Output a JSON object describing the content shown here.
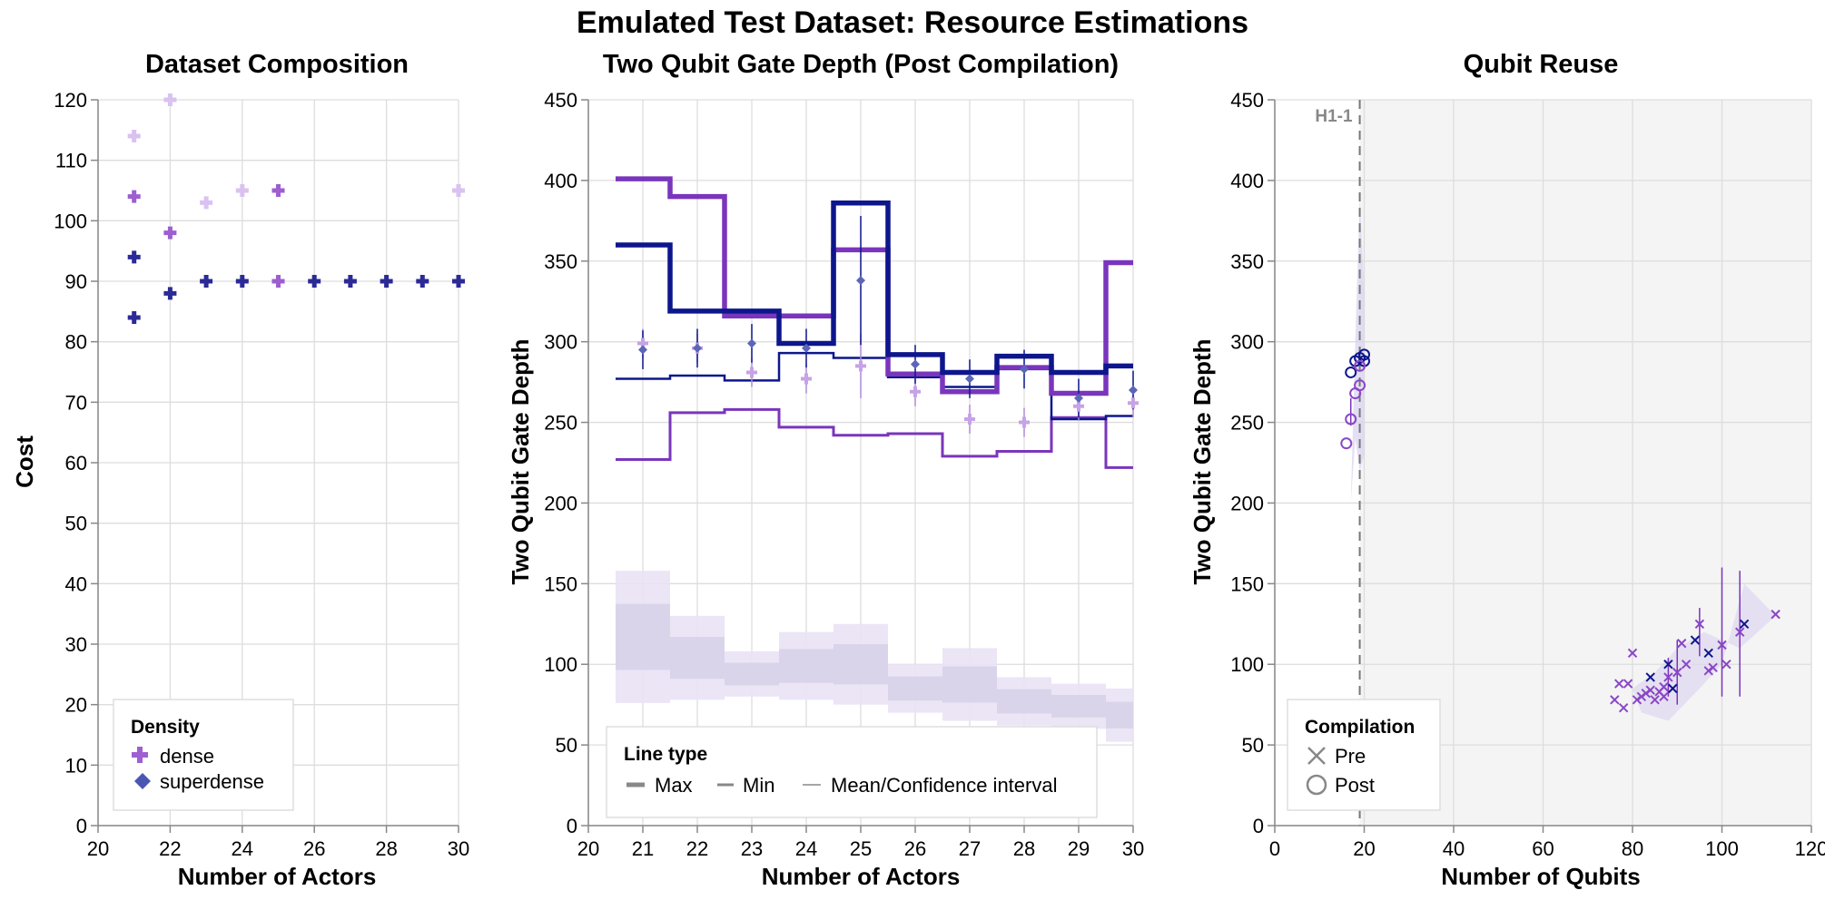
{
  "figure_title": "Emulated Test Dataset: Resource Estimations",
  "colors": {
    "dense": "#9f5fd2",
    "dense_light": "#d7bdf0",
    "superdense": "#4a57b2",
    "navy": "#0d168c",
    "purple": "#7a35bd",
    "light_band": "#e9e2f5",
    "light_band2": "#e4e3f1",
    "grid": "#dddddd",
    "axis": "#888888",
    "shade": "#f4f4f4"
  },
  "chart_data": [
    {
      "type": "scatter",
      "title": "Dataset Composition",
      "xlabel": "Number of Actors",
      "ylabel": "Cost",
      "xlim": [
        20,
        30
      ],
      "ylim": [
        0,
        120
      ],
      "x_ticks": [
        20,
        22,
        24,
        26,
        28,
        30
      ],
      "y_ticks": [
        0,
        10,
        20,
        30,
        40,
        50,
        60,
        70,
        80,
        90,
        100,
        110,
        120
      ],
      "grid": true,
      "legend": {
        "title": "Density",
        "position": "bottom-left",
        "entries": [
          "dense",
          "superdense"
        ]
      },
      "points": [
        {
          "x": 21,
          "y": 114,
          "shade": "light"
        },
        {
          "x": 22,
          "y": 120,
          "shade": "light"
        },
        {
          "x": 23,
          "y": 103,
          "shade": "light"
        },
        {
          "x": 24,
          "y": 105,
          "shade": "light"
        },
        {
          "x": 30,
          "y": 105,
          "shade": "light"
        },
        {
          "x": 21,
          "y": 104,
          "shade": "mid"
        },
        {
          "x": 22,
          "y": 98,
          "shade": "mid"
        },
        {
          "x": 25,
          "y": 105,
          "shade": "mid"
        },
        {
          "x": 25,
          "y": 90,
          "shade": "mid"
        },
        {
          "x": 21,
          "y": 94,
          "shade": "dark"
        },
        {
          "x": 21,
          "y": 84,
          "shade": "dark"
        },
        {
          "x": 22,
          "y": 88,
          "shade": "dark"
        },
        {
          "x": 23,
          "y": 90,
          "shade": "dark"
        },
        {
          "x": 24,
          "y": 90,
          "shade": "dark"
        },
        {
          "x": 26,
          "y": 90,
          "shade": "dark"
        },
        {
          "x": 27,
          "y": 90,
          "shade": "dark"
        },
        {
          "x": 28,
          "y": 90,
          "shade": "dark"
        },
        {
          "x": 29,
          "y": 90,
          "shade": "dark"
        },
        {
          "x": 30,
          "y": 90,
          "shade": "dark"
        }
      ]
    },
    {
      "type": "line",
      "title": "Two Qubit Gate Depth (Post Compilation)",
      "xlabel": "Number of Actors",
      "ylabel": "Two Qubit Gate Depth",
      "xlim": [
        20,
        30
      ],
      "ylim": [
        0,
        450
      ],
      "x_ticks": [
        20,
        21,
        22,
        23,
        24,
        25,
        26,
        27,
        28,
        29,
        30
      ],
      "y_ticks": [
        0,
        50,
        100,
        150,
        200,
        250,
        300,
        350,
        400,
        450
      ],
      "grid": true,
      "legend": {
        "title": "Line type",
        "position": "bottom",
        "entries": [
          "Max",
          "Min",
          "Mean/Confidence interval"
        ]
      },
      "x": [
        21,
        22,
        23,
        24,
        25,
        26,
        27,
        28,
        29,
        30
      ],
      "series": [
        {
          "name": "dense Max",
          "values": [
            401,
            390,
            316,
            316,
            357,
            280,
            269,
            284,
            268,
            349
          ]
        },
        {
          "name": "superdense Max",
          "values": [
            360,
            319,
            319,
            299,
            386,
            292,
            281,
            291,
            281,
            285
          ]
        },
        {
          "name": "dense Min",
          "values": [
            227,
            256,
            258,
            247,
            242,
            243,
            229,
            232,
            253,
            222
          ]
        },
        {
          "name": "superdense Min",
          "values": [
            277,
            279,
            276,
            293,
            290,
            278,
            272,
            283,
            252,
            254
          ]
        },
        {
          "name": "dense Mean",
          "values": [
            299,
            296,
            281,
            277,
            285,
            269,
            252,
            250,
            260,
            262
          ]
        },
        {
          "name": "superdense Mean",
          "values": [
            295,
            296,
            299,
            296,
            338,
            286,
            277,
            283,
            265,
            270
          ]
        },
        {
          "name": "band low",
          "values": [
            76,
            78,
            80,
            78,
            75,
            70,
            65,
            62,
            60,
            52
          ]
        },
        {
          "name": "band high",
          "values": [
            158,
            130,
            108,
            120,
            125,
            100,
            110,
            92,
            88,
            85
          ]
        }
      ]
    },
    {
      "type": "scatter",
      "title": "Qubit Reuse",
      "xlabel": "Number of Qubits",
      "ylabel": "Two Qubit Gate Depth",
      "xlim": [
        0,
        120
      ],
      "ylim": [
        0,
        450
      ],
      "x_ticks": [
        0,
        20,
        40,
        60,
        80,
        100,
        120
      ],
      "y_ticks": [
        0,
        50,
        100,
        150,
        200,
        250,
        300,
        350,
        400,
        450
      ],
      "grid": true,
      "annotation": "H1-1",
      "h1_x": 19,
      "legend": {
        "title": "Compilation",
        "position": "bottom-left",
        "entries": [
          "Pre",
          "Post"
        ]
      },
      "post_points": [
        [
          16,
          237,
          "p"
        ],
        [
          17,
          252,
          "p"
        ],
        [
          18,
          268,
          "p"
        ],
        [
          19,
          273,
          "p"
        ],
        [
          17,
          281,
          "n"
        ],
        [
          18,
          288,
          "n"
        ],
        [
          19,
          290,
          "n"
        ],
        [
          20,
          292,
          "n"
        ],
        [
          20,
          288,
          "n"
        ],
        [
          19,
          285,
          "p"
        ]
      ],
      "pre_points": [
        [
          76,
          78,
          "p"
        ],
        [
          77,
          88,
          "p"
        ],
        [
          78,
          73,
          "p"
        ],
        [
          79,
          88,
          "p"
        ],
        [
          80,
          107,
          "p"
        ],
        [
          81,
          78,
          "p"
        ],
        [
          82,
          80,
          "p"
        ],
        [
          83,
          82,
          "p"
        ],
        [
          84,
          92,
          "n"
        ],
        [
          84,
          84,
          "p"
        ],
        [
          85,
          78,
          "p"
        ],
        [
          86,
          83,
          "p"
        ],
        [
          87,
          80,
          "p"
        ],
        [
          87,
          86,
          "p"
        ],
        [
          88,
          100,
          "n"
        ],
        [
          88,
          92,
          "p"
        ],
        [
          89,
          85,
          "n"
        ],
        [
          90,
          95,
          "p"
        ],
        [
          91,
          113,
          "p"
        ],
        [
          92,
          100,
          "p"
        ],
        [
          94,
          115,
          "n"
        ],
        [
          95,
          125,
          "p"
        ],
        [
          97,
          96,
          "p"
        ],
        [
          97,
          107,
          "n"
        ],
        [
          98,
          98,
          "p"
        ],
        [
          100,
          112,
          "p"
        ],
        [
          101,
          100,
          "p"
        ],
        [
          104,
          120,
          "p"
        ],
        [
          105,
          125,
          "n"
        ],
        [
          112,
          131,
          "p"
        ]
      ]
    }
  ]
}
